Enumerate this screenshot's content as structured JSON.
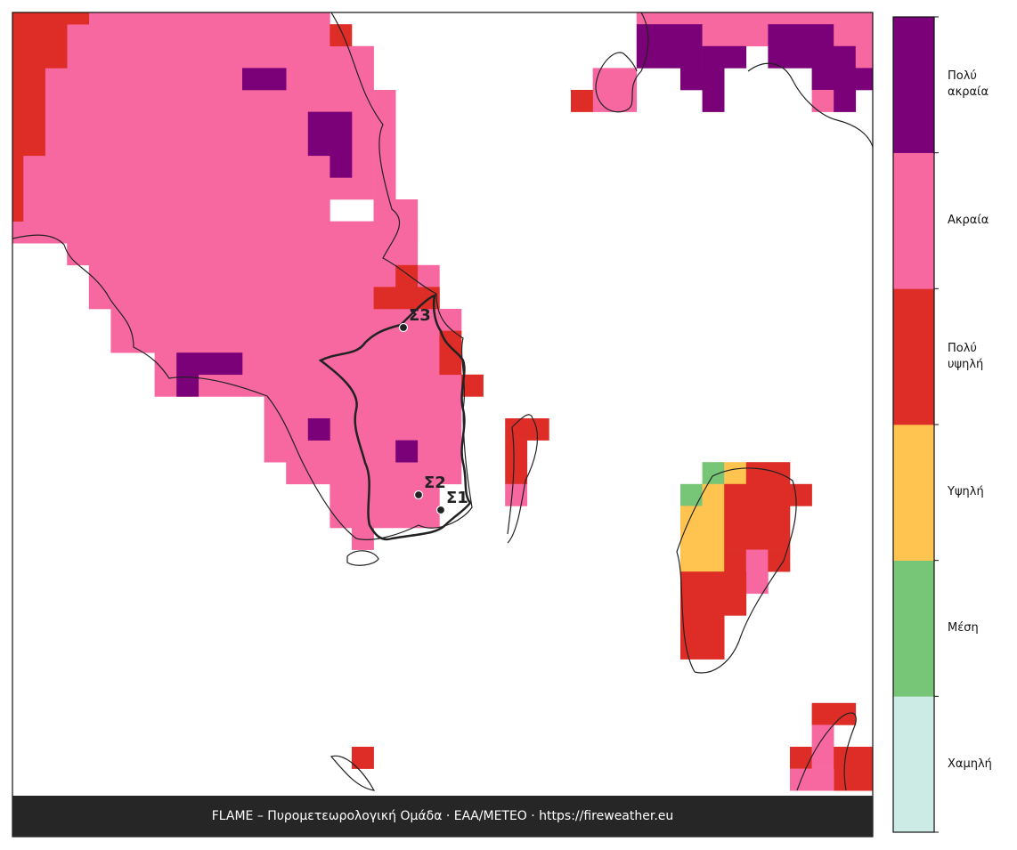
{
  "map": {
    "stations": [
      {
        "label": "Σ1"
      },
      {
        "label": "Σ2"
      },
      {
        "label": "Σ3"
      }
    ],
    "legend": {
      "levels": [
        {
          "label": "Χαμηλή",
          "color": "#cdebe5"
        },
        {
          "label": "Μέση",
          "color": "#77c677"
        },
        {
          "label": "Υψηλή",
          "color": "#ffc34f"
        },
        {
          "label": "Πολύ υψηλή",
          "color": "#de2d26"
        },
        {
          "label": "Ακραία",
          "color": "#f768a1"
        },
        {
          "label": "Πολύ ακραία",
          "color": "#7a0177"
        }
      ]
    },
    "footer": "FLAME – Πυρομετεωρολογική Ομάδα · ΕΑΑ/METEO · https://fireweather.eu"
  }
}
